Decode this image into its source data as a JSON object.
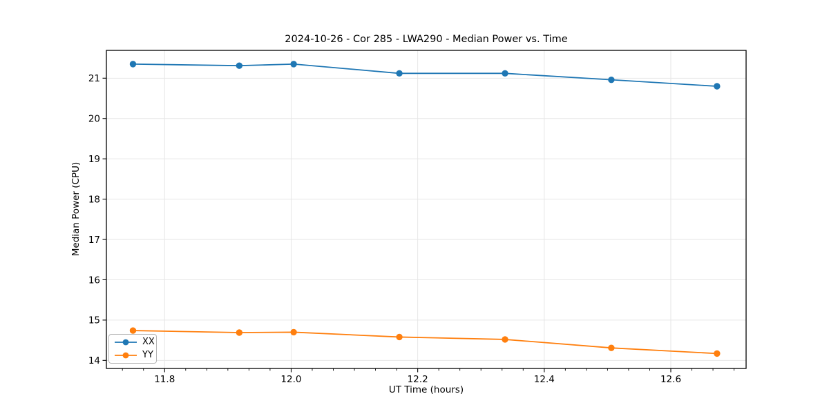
{
  "page": {
    "background": "#ffffff"
  },
  "chart_data": {
    "type": "line",
    "title": "2024-10-26 - Cor 285 - LWA290 - Median Power vs. Time",
    "xlabel": "UT Time (hours)",
    "ylabel": "Median Power (CPU)",
    "xlim": [
      11.708,
      12.719
    ],
    "ylim": [
      13.8,
      21.69
    ],
    "xticks": [
      11.8,
      12.0,
      12.2,
      12.4,
      12.6
    ],
    "yticks": [
      14,
      15,
      16,
      17,
      18,
      19,
      20,
      21
    ],
    "x_minor_tick_step": 0.0333333,
    "grid": true,
    "grid_color": "#e6e6e6",
    "axis_color": "#000000",
    "legend_position": "lower left",
    "x": [
      11.75,
      11.918,
      12.004,
      12.171,
      12.338,
      12.506,
      12.673
    ],
    "series": [
      {
        "name": "XX",
        "color": "#1f77b4",
        "values": [
          21.35,
          21.31,
          21.35,
          21.12,
          21.12,
          20.96,
          20.8
        ]
      },
      {
        "name": "YY",
        "color": "#ff7f0e",
        "values": [
          14.74,
          14.69,
          14.7,
          14.58,
          14.52,
          14.31,
          14.17
        ]
      }
    ]
  }
}
